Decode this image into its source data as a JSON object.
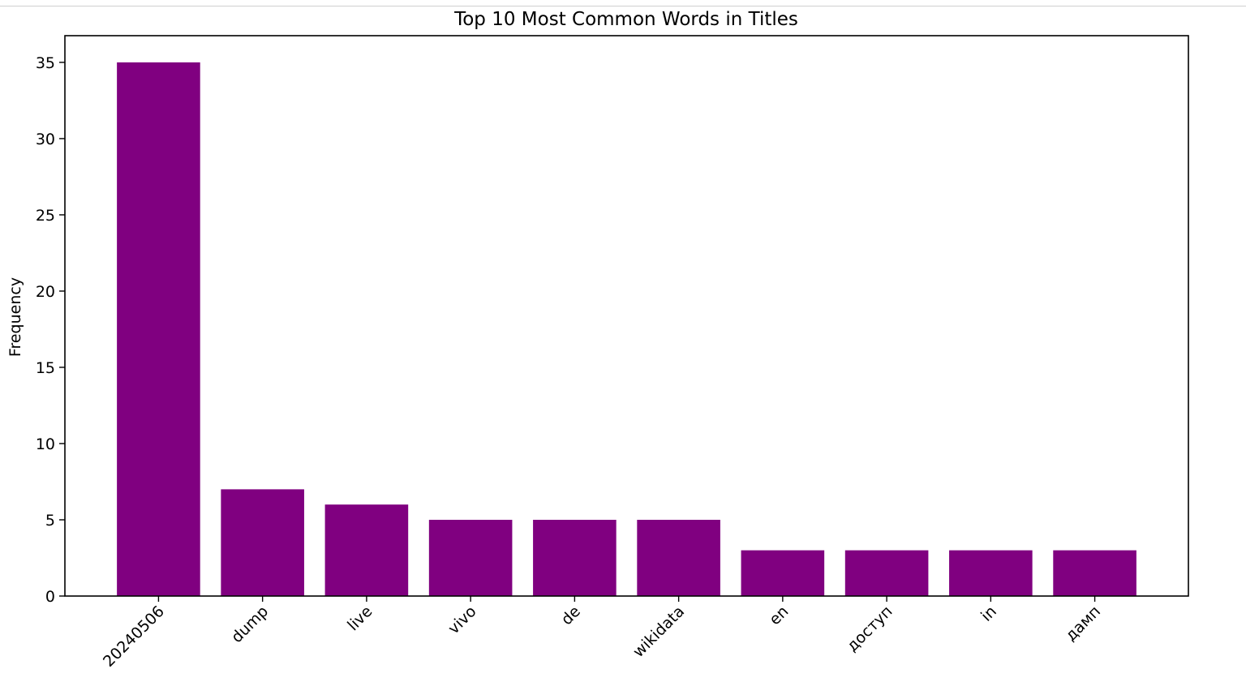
{
  "chart_data": {
    "type": "bar",
    "title": "Top 10 Most Common Words in Titles",
    "xlabel": "",
    "ylabel": "Frequency",
    "categories": [
      "20240506",
      "dump",
      "live",
      "vivo",
      "de",
      "wikidata",
      "en",
      "доступ",
      "in",
      "дамп"
    ],
    "values": [
      35,
      7,
      6,
      5,
      5,
      5,
      3,
      3,
      3,
      3
    ],
    "ylim": [
      0,
      36.75
    ],
    "yticks": [
      0,
      5,
      10,
      15,
      20,
      25,
      30,
      35
    ],
    "x_tick_rotation": 45,
    "bar_color": "#800080",
    "grid": false,
    "legend": "none"
  }
}
